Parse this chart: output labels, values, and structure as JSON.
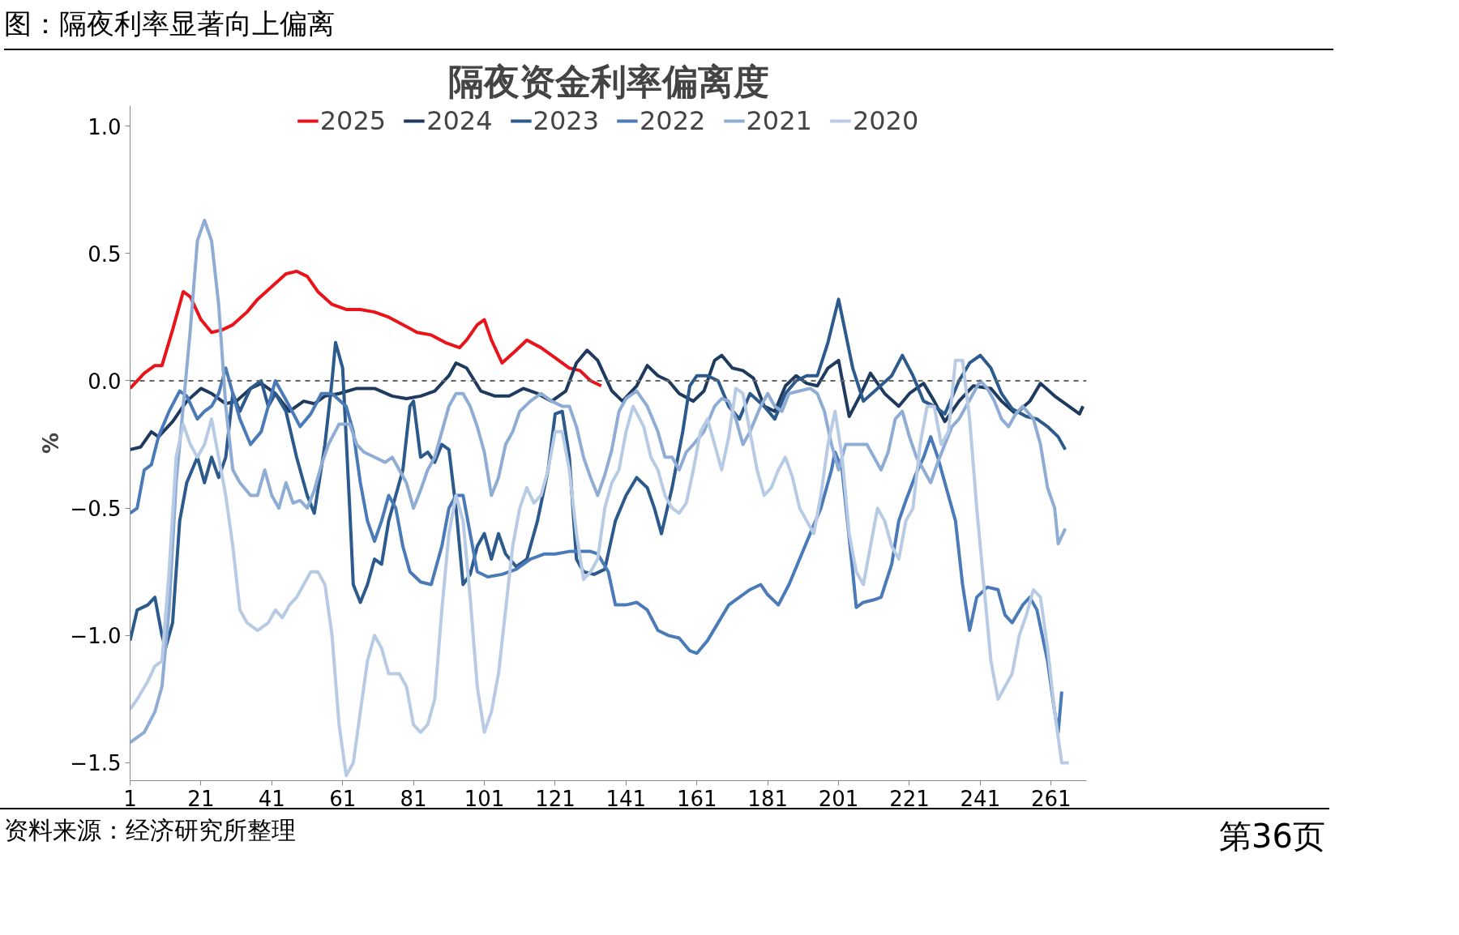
{
  "chart_data": {
    "type": "line",
    "title": "隔夜资金利率偏离度",
    "ylabel": "%",
    "annotations": [
      "图：隔夜利率显著向上偏离",
      "资料来源：经济研究所整理",
      "第36页"
    ],
    "xlim": [
      1,
      271
    ],
    "xticks": [
      1,
      21,
      41,
      61,
      81,
      101,
      121,
      141,
      161,
      181,
      201,
      221,
      241,
      261
    ],
    "ylim": [
      -1.57,
      1.08
    ],
    "yticks": [
      {
        "value": 1.0,
        "label": "1.0"
      },
      {
        "value": 0.5,
        "label": "0.5"
      },
      {
        "value": 0.0,
        "label": "0.0"
      },
      {
        "value": -0.5,
        "label": "−0.5"
      },
      {
        "value": -1.0,
        "label": "−1.0"
      },
      {
        "value": -1.5,
        "label": "−1.5"
      }
    ],
    "legend": "top",
    "grid": false,
    "line_style": "solid",
    "ref_lines": [
      {
        "axis": "y",
        "value": 0,
        "color": "#666666",
        "line_style": "dashed"
      }
    ],
    "series": [
      {
        "name": "2025",
        "color": "#e8141a",
        "x": [
          1,
          5,
          8,
          10,
          13,
          16,
          18,
          21,
          24,
          27,
          30,
          34,
          37,
          41,
          45,
          48,
          51,
          54,
          58,
          62,
          66,
          70,
          74,
          78,
          82,
          86,
          90,
          94,
          96,
          99,
          101,
          103,
          106,
          110,
          113,
          117,
          121,
          125,
          128,
          131,
          134
        ],
        "values": [
          -0.03,
          0.03,
          0.06,
          0.06,
          0.2,
          0.35,
          0.33,
          0.24,
          0.19,
          0.2,
          0.22,
          0.27,
          0.32,
          0.37,
          0.42,
          0.43,
          0.41,
          0.35,
          0.3,
          0.28,
          0.28,
          0.27,
          0.25,
          0.22,
          0.19,
          0.18,
          0.15,
          0.13,
          0.16,
          0.22,
          0.24,
          0.16,
          0.07,
          0.12,
          0.16,
          0.13,
          0.09,
          0.05,
          0.04,
          0.0,
          -0.02
        ]
      },
      {
        "name": "2024",
        "color": "#1f3a5f",
        "x": [
          1,
          4,
          7,
          9,
          13,
          17,
          21,
          24,
          28,
          31,
          35,
          38,
          42,
          46,
          50,
          53,
          56,
          60,
          65,
          70,
          75,
          79,
          83,
          87,
          91,
          93,
          96,
          100,
          104,
          108,
          112,
          116,
          120,
          124,
          127,
          130,
          133,
          137,
          140,
          144,
          147,
          150,
          153,
          156,
          160,
          163,
          166,
          168,
          171,
          174,
          177,
          180,
          183,
          186,
          189,
          192,
          195,
          198,
          201,
          204,
          207,
          210,
          214,
          218,
          221,
          225,
          228,
          231,
          235,
          239,
          244,
          247,
          251,
          255,
          258,
          262,
          266,
          269,
          270
        ],
        "values": [
          -0.27,
          -0.26,
          -0.2,
          -0.22,
          -0.16,
          -0.08,
          -0.03,
          -0.05,
          -0.09,
          -0.08,
          -0.03,
          -0.01,
          -0.05,
          -0.12,
          -0.08,
          -0.09,
          -0.06,
          -0.05,
          -0.03,
          -0.03,
          -0.06,
          -0.07,
          -0.06,
          -0.04,
          0.02,
          0.07,
          0.05,
          -0.04,
          -0.06,
          -0.06,
          -0.03,
          -0.05,
          -0.08,
          -0.04,
          0.07,
          0.12,
          0.08,
          -0.04,
          -0.08,
          -0.02,
          0.06,
          0.02,
          0.0,
          -0.05,
          -0.08,
          -0.04,
          0.08,
          0.1,
          0.05,
          0.04,
          0.01,
          -0.1,
          -0.12,
          -0.02,
          0.02,
          -0.01,
          -0.02,
          0.05,
          0.08,
          -0.14,
          -0.06,
          0.03,
          -0.05,
          -0.1,
          -0.05,
          -0.01,
          -0.08,
          -0.16,
          -0.08,
          -0.02,
          -0.03,
          -0.08,
          -0.13,
          -0.08,
          -0.01,
          -0.06,
          -0.1,
          -0.13,
          -0.1
        ]
      },
      {
        "name": "2023",
        "color": "#2c5a8c",
        "x": [
          1,
          3,
          6,
          8,
          10,
          11,
          13,
          15,
          17,
          20,
          22,
          24,
          26,
          28,
          30,
          32,
          35,
          38,
          40,
          42,
          45,
          48,
          51,
          53,
          56,
          58,
          59,
          61,
          63,
          64,
          66,
          68,
          70,
          72,
          74,
          76,
          78,
          80,
          81,
          83,
          85,
          87,
          89,
          91,
          93,
          95,
          97,
          99,
          101,
          103,
          105,
          107,
          110,
          113,
          116,
          119,
          121,
          123,
          125,
          127,
          129,
          132,
          135,
          138,
          141,
          144,
          147,
          149,
          151,
          154,
          157,
          159,
          161,
          164,
          167,
          170,
          173,
          176,
          180,
          183,
          186,
          189,
          192,
          195,
          198,
          201,
          205,
          208,
          212,
          216,
          219,
          222,
          225,
          228,
          231,
          235,
          238,
          241,
          244,
          247,
          250,
          254,
          257,
          260,
          263,
          265
        ],
        "values": [
          -1.02,
          -0.9,
          -0.88,
          -0.85,
          -1.0,
          -1.05,
          -0.95,
          -0.55,
          -0.4,
          -0.3,
          -0.4,
          -0.3,
          -0.38,
          -0.3,
          -0.05,
          -0.12,
          -0.03,
          0.0,
          -0.1,
          -0.05,
          -0.12,
          -0.3,
          -0.45,
          -0.52,
          -0.25,
          0.0,
          0.15,
          0.05,
          -0.5,
          -0.8,
          -0.87,
          -0.8,
          -0.7,
          -0.72,
          -0.55,
          -0.45,
          -0.35,
          -0.1,
          -0.08,
          -0.3,
          -0.28,
          -0.32,
          -0.25,
          -0.27,
          -0.5,
          -0.8,
          -0.76,
          -0.65,
          -0.6,
          -0.7,
          -0.6,
          -0.68,
          -0.73,
          -0.7,
          -0.55,
          -0.35,
          -0.13,
          -0.12,
          -0.3,
          -0.7,
          -0.75,
          -0.76,
          -0.74,
          -0.55,
          -0.45,
          -0.38,
          -0.42,
          -0.5,
          -0.6,
          -0.42,
          -0.2,
          -0.02,
          0.02,
          0.02,
          0.0,
          -0.1,
          -0.15,
          -0.05,
          -0.1,
          -0.15,
          -0.05,
          0.0,
          0.02,
          0.02,
          0.15,
          0.32,
          0.05,
          -0.08,
          -0.03,
          0.02,
          0.1,
          0.02,
          -0.08,
          -0.1,
          -0.13,
          0.0,
          0.07,
          0.1,
          0.05,
          -0.05,
          -0.11,
          -0.14,
          -0.15,
          -0.18,
          -0.22,
          -0.27
        ]
      },
      {
        "name": "2022",
        "color": "#4a7ab8",
        "x": [
          1,
          3,
          5,
          7,
          9,
          12,
          15,
          17,
          20,
          22,
          24,
          26,
          28,
          30,
          32,
          35,
          38,
          40,
          42,
          44,
          46,
          49,
          52,
          55,
          58,
          62,
          64,
          66,
          68,
          70,
          72,
          74,
          76,
          78,
          80,
          83,
          86,
          89,
          91,
          93,
          95,
          97,
          99,
          102,
          106,
          110,
          114,
          118,
          121,
          125,
          129,
          131,
          133,
          136,
          138,
          141,
          144,
          147,
          150,
          153,
          156,
          159,
          161,
          164,
          167,
          170,
          173,
          176,
          179,
          181,
          184,
          187,
          190,
          193,
          196,
          199,
          200,
          202,
          205,
          206,
          208,
          211,
          213,
          216,
          218,
          220,
          223,
          225,
          227,
          229,
          231,
          234,
          236,
          238,
          240,
          243,
          246,
          248,
          250,
          253,
          255,
          257,
          260,
          262,
          263,
          264
        ],
        "values": [
          -0.52,
          -0.5,
          -0.35,
          -0.33,
          -0.22,
          -0.12,
          -0.04,
          -0.06,
          -0.15,
          -0.12,
          -0.1,
          -0.05,
          0.05,
          -0.05,
          -0.15,
          -0.25,
          -0.2,
          -0.1,
          0.0,
          -0.05,
          -0.1,
          -0.18,
          -0.13,
          -0.05,
          -0.05,
          -0.1,
          -0.2,
          -0.4,
          -0.55,
          -0.63,
          -0.55,
          -0.45,
          -0.5,
          -0.65,
          -0.75,
          -0.79,
          -0.8,
          -0.65,
          -0.5,
          -0.45,
          -0.45,
          -0.6,
          -0.75,
          -0.77,
          -0.76,
          -0.74,
          -0.7,
          -0.68,
          -0.68,
          -0.67,
          -0.67,
          -0.67,
          -0.68,
          -0.75,
          -0.88,
          -0.88,
          -0.87,
          -0.9,
          -0.98,
          -1.0,
          -1.01,
          -1.06,
          -1.07,
          -1.02,
          -0.95,
          -0.88,
          -0.85,
          -0.82,
          -0.8,
          -0.84,
          -0.88,
          -0.8,
          -0.7,
          -0.6,
          -0.5,
          -0.35,
          -0.28,
          -0.35,
          -0.75,
          -0.89,
          -0.87,
          -0.86,
          -0.85,
          -0.72,
          -0.55,
          -0.47,
          -0.36,
          -0.3,
          -0.22,
          -0.3,
          -0.4,
          -0.55,
          -0.8,
          -0.98,
          -0.85,
          -0.81,
          -0.82,
          -0.92,
          -0.95,
          -0.88,
          -0.85,
          -0.9,
          -1.1,
          -1.3,
          -1.38,
          -1.22
        ]
      },
      {
        "name": "2021",
        "color": "#8fadd4",
        "x": [
          1,
          3,
          5,
          8,
          10,
          12,
          14,
          16,
          18,
          20,
          22,
          24,
          26,
          28,
          30,
          32,
          35,
          37,
          39,
          41,
          43,
          45,
          47,
          49,
          51,
          53,
          55,
          57,
          60,
          63,
          65,
          67,
          70,
          73,
          75,
          77,
          79,
          81,
          83,
          85,
          87,
          89,
          91,
          93,
          95,
          97,
          99,
          101,
          103,
          105,
          107,
          109,
          111,
          114,
          117,
          120,
          123,
          125,
          127,
          129,
          131,
          133,
          135,
          137,
          139,
          141,
          144,
          147,
          150,
          152,
          154,
          156,
          158,
          160,
          163,
          166,
          168,
          170,
          172,
          174,
          176,
          179,
          181,
          183,
          185,
          187,
          190,
          193,
          195,
          197,
          199,
          201,
          203,
          206,
          209,
          211,
          213,
          215,
          217,
          219,
          221,
          223,
          225,
          227,
          229,
          231,
          233,
          235,
          237,
          239,
          241,
          243,
          245,
          247,
          249,
          251,
          253,
          256,
          258,
          260,
          262,
          263,
          265
        ],
        "values": [
          -1.42,
          -1.4,
          -1.38,
          -1.3,
          -1.2,
          -0.9,
          -0.4,
          -0.1,
          0.2,
          0.55,
          0.63,
          0.55,
          0.3,
          -0.1,
          -0.35,
          -0.4,
          -0.45,
          -0.45,
          -0.35,
          -0.45,
          -0.5,
          -0.4,
          -0.48,
          -0.47,
          -0.5,
          -0.43,
          -0.33,
          -0.25,
          -0.17,
          -0.17,
          -0.25,
          -0.28,
          -0.3,
          -0.32,
          -0.3,
          -0.35,
          -0.4,
          -0.5,
          -0.43,
          -0.35,
          -0.3,
          -0.2,
          -0.1,
          -0.05,
          -0.05,
          -0.1,
          -0.18,
          -0.28,
          -0.45,
          -0.38,
          -0.25,
          -0.2,
          -0.12,
          -0.08,
          -0.05,
          -0.08,
          -0.1,
          -0.1,
          -0.18,
          -0.3,
          -0.38,
          -0.45,
          -0.37,
          -0.27,
          -0.12,
          -0.07,
          -0.04,
          -0.1,
          -0.2,
          -0.3,
          -0.3,
          -0.35,
          -0.28,
          -0.25,
          -0.2,
          -0.1,
          -0.07,
          -0.08,
          -0.15,
          -0.25,
          -0.2,
          -0.1,
          -0.05,
          -0.1,
          -0.12,
          -0.05,
          -0.04,
          -0.03,
          -0.05,
          -0.12,
          -0.25,
          -0.35,
          -0.25,
          -0.25,
          -0.25,
          -0.3,
          -0.35,
          -0.28,
          -0.15,
          -0.12,
          -0.22,
          -0.3,
          -0.35,
          -0.4,
          -0.32,
          -0.25,
          -0.18,
          -0.15,
          -0.1,
          -0.05,
          0.0,
          -0.03,
          -0.08,
          -0.15,
          -0.18,
          -0.13,
          -0.1,
          -0.15,
          -0.25,
          -0.42,
          -0.5,
          -0.64,
          -0.58
        ]
      },
      {
        "name": "2020",
        "color": "#b8cbe4",
        "x": [
          1,
          3,
          6,
          8,
          10,
          12,
          14,
          16,
          18,
          20,
          22,
          24,
          26,
          28,
          30,
          32,
          34,
          37,
          40,
          42,
          44,
          46,
          48,
          50,
          52,
          54,
          56,
          58,
          60,
          62,
          64,
          66,
          68,
          70,
          72,
          74,
          77,
          79,
          81,
          83,
          85,
          87,
          89,
          91,
          93,
          95,
          97,
          99,
          101,
          103,
          105,
          107,
          109,
          111,
          113,
          115,
          117,
          119,
          121,
          123,
          125,
          127,
          129,
          131,
          133,
          135,
          137,
          139,
          141,
          143,
          146,
          148,
          150,
          152,
          154,
          156,
          158,
          160,
          162,
          164,
          166,
          168,
          170,
          172,
          174,
          176,
          178,
          180,
          182,
          184,
          186,
          188,
          190,
          192,
          194,
          196,
          198,
          200,
          202,
          204,
          206,
          208,
          210,
          212,
          214,
          216,
          218,
          220,
          222,
          224,
          226,
          228,
          230,
          232,
          234,
          236,
          238,
          240,
          242,
          244,
          246,
          248,
          250,
          252,
          254,
          256,
          258,
          260,
          262,
          264,
          266
        ],
        "values": [
          -1.29,
          -1.25,
          -1.18,
          -1.12,
          -1.1,
          -0.75,
          -0.3,
          -0.17,
          -0.25,
          -0.3,
          -0.25,
          -0.15,
          -0.3,
          -0.45,
          -0.65,
          -0.9,
          -0.95,
          -0.98,
          -0.95,
          -0.9,
          -0.93,
          -0.88,
          -0.85,
          -0.8,
          -0.75,
          -0.75,
          -0.8,
          -1.0,
          -1.35,
          -1.55,
          -1.5,
          -1.3,
          -1.1,
          -1.0,
          -1.05,
          -1.15,
          -1.15,
          -1.2,
          -1.35,
          -1.38,
          -1.35,
          -1.25,
          -0.9,
          -0.6,
          -0.45,
          -0.55,
          -0.85,
          -1.2,
          -1.38,
          -1.3,
          -1.15,
          -0.9,
          -0.65,
          -0.5,
          -0.42,
          -0.48,
          -0.45,
          -0.35,
          -0.2,
          -0.2,
          -0.35,
          -0.6,
          -0.78,
          -0.75,
          -0.7,
          -0.5,
          -0.4,
          -0.35,
          -0.2,
          -0.1,
          -0.18,
          -0.3,
          -0.35,
          -0.45,
          -0.5,
          -0.52,
          -0.48,
          -0.35,
          -0.2,
          -0.15,
          -0.25,
          -0.35,
          -0.22,
          -0.03,
          -0.05,
          -0.2,
          -0.35,
          -0.45,
          -0.42,
          -0.35,
          -0.3,
          -0.38,
          -0.5,
          -0.55,
          -0.6,
          -0.45,
          -0.25,
          -0.12,
          -0.3,
          -0.6,
          -0.75,
          -0.8,
          -0.65,
          -0.5,
          -0.55,
          -0.65,
          -0.7,
          -0.55,
          -0.5,
          -0.25,
          -0.1,
          -0.1,
          -0.25,
          -0.2,
          0.08,
          0.08,
          -0.15,
          -0.5,
          -0.8,
          -1.1,
          -1.25,
          -1.2,
          -1.15,
          -1.0,
          -0.92,
          -0.82,
          -0.85,
          -1.05,
          -1.3,
          -1.5,
          -1.5
        ]
      }
    ]
  }
}
